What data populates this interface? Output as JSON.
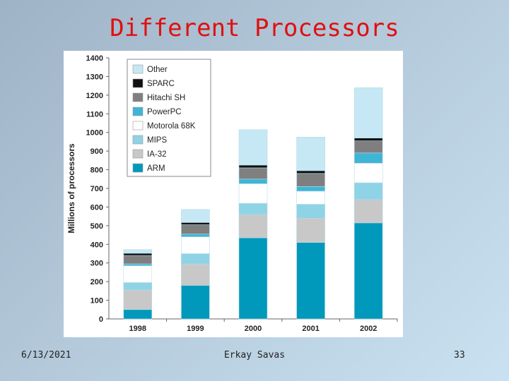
{
  "slide": {
    "title": "Different Processors",
    "footer_date": "6/13/2021",
    "footer_author": "Erkay Savas",
    "page_number": "33"
  },
  "chart_data": {
    "type": "bar",
    "stacked": true,
    "title": "",
    "xlabel": "",
    "ylabel": "Millions of processors",
    "ylim": [
      0,
      1400
    ],
    "yticks": [
      0,
      100,
      200,
      300,
      400,
      500,
      600,
      700,
      800,
      900,
      1000,
      1100,
      1200,
      1300,
      1400
    ],
    "categories": [
      "1998",
      "1999",
      "2000",
      "2001",
      "2002"
    ],
    "legend_position": "top-left",
    "grid": false,
    "series": [
      {
        "name": "ARM",
        "color": "#0099bb",
        "values": [
          50,
          180,
          435,
          410,
          515
        ]
      },
      {
        "name": "IA-32",
        "color": "#c8c8c8",
        "values": [
          105,
          115,
          125,
          130,
          125
        ]
      },
      {
        "name": "MIPS",
        "color": "#8fd3e6",
        "values": [
          40,
          55,
          60,
          75,
          90
        ]
      },
      {
        "name": "Motorola 68K",
        "color": "#ffffff",
        "values": [
          90,
          90,
          105,
          70,
          105
        ]
      },
      {
        "name": "PowerPC",
        "color": "#3fb5d6",
        "values": [
          10,
          15,
          25,
          25,
          55
        ]
      },
      {
        "name": "Hitachi SH",
        "color": "#7f7f7f",
        "values": [
          45,
          50,
          60,
          70,
          65
        ]
      },
      {
        "name": "SPARC",
        "color": "#111111",
        "values": [
          12,
          12,
          15,
          15,
          15
        ]
      },
      {
        "name": "Other",
        "color": "#c6e8f4",
        "values": [
          20,
          70,
          190,
          180,
          270
        ]
      }
    ]
  }
}
